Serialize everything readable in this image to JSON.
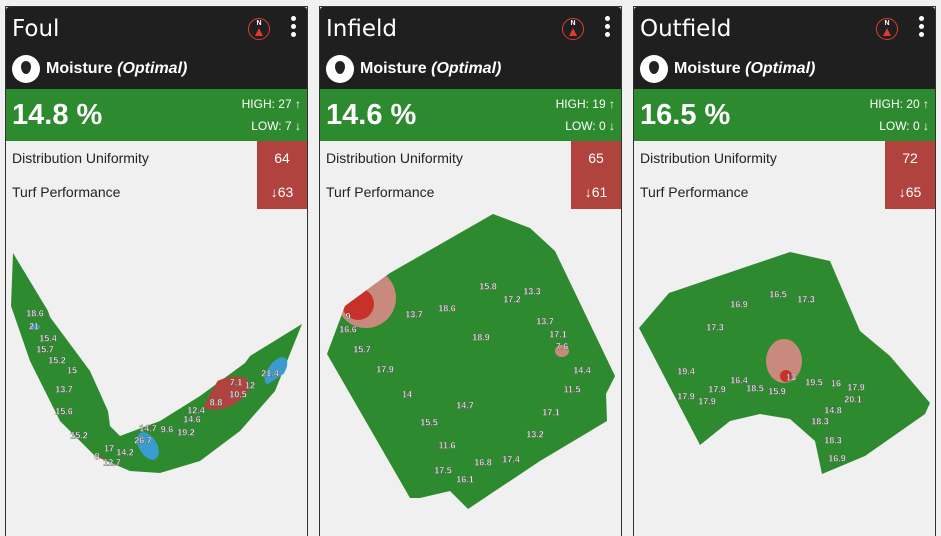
{
  "panels": [
    {
      "title": "Foul",
      "metric": "Moisture",
      "status": "(Optimal)",
      "value": "14.8 %",
      "high": "HIGH: 27",
      "low": "LOW: 7",
      "du_label": "Distribution Uniformity",
      "du": "64",
      "tp_label": "Turf Performance",
      "tp": "63",
      "labels": [
        "18.6",
        "21",
        "15.4",
        "15.7",
        "15.2",
        "15",
        "13.7",
        "15.6",
        "15.2",
        "8",
        "17",
        "12.7",
        "14.2",
        "26.7",
        "14.7",
        "9.6",
        "19.2",
        "14.6",
        "12.4",
        "8.8",
        "10.5",
        "7.1",
        "12",
        "21.4"
      ]
    },
    {
      "title": "Infield",
      "metric": "Moisture",
      "status": "(Optimal)",
      "value": "14.6 %",
      "high": "HIGH: 19",
      "low": "LOW: 0",
      "du_label": "Distribution Uniformity",
      "du": "65",
      "tp_label": "Turf Performance",
      "tp": "61",
      "labels": [
        "15.8",
        "13.3",
        "17.2",
        "13.7",
        "18.6",
        "16.6",
        "9",
        "13.7",
        "17.1",
        "7.6",
        "18.9",
        "15.7",
        "17.9",
        "14.4",
        "11.5",
        "14",
        "14.7",
        "17.1",
        "15.5",
        "13.2",
        "11.6",
        "16.8",
        "17.4",
        "17.5",
        "16.1"
      ]
    },
    {
      "title": "Outfield",
      "metric": "Moisture",
      "status": "(Optimal)",
      "value": "16.5 %",
      "high": "HIGH: 20",
      "low": "LOW: 0",
      "du_label": "Distribution Uniformity",
      "du": "72",
      "tp_label": "Turf Performance",
      "tp": "65",
      "labels": [
        "16.5",
        "17.3",
        "16.9",
        "17.3",
        "19.4",
        "16.4",
        "17.9",
        "18.5",
        "15.9",
        "13",
        "19.5",
        "16",
        "17.9",
        "20.1",
        "17.9",
        "17.9",
        "14.8",
        "18.3",
        "18.3",
        "16.9"
      ]
    }
  ],
  "colors": {
    "header": "#1f1f1f",
    "optimal": "#2e8a2f",
    "alert": "#b0433e",
    "compass": "#e03a2f",
    "wet": "#3a9bd0",
    "dry": "#c8302a"
  }
}
